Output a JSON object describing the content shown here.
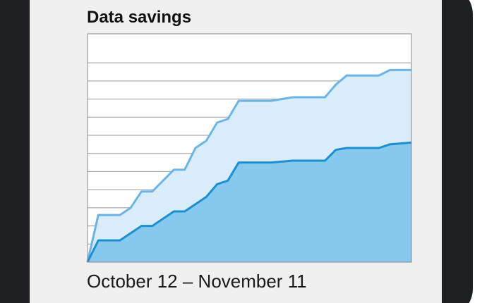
{
  "chart_data": {
    "type": "area",
    "title": "Data savings",
    "subtitle": "October 12 – November 11",
    "x": [
      0,
      1,
      3,
      4,
      5,
      6,
      8,
      9,
      10,
      11,
      12,
      13,
      14,
      17,
      19,
      22,
      23,
      24,
      27,
      28,
      30
    ],
    "xlim": [
      0,
      30
    ],
    "ylim": [
      0,
      12.6
    ],
    "yticks": [
      1,
      2,
      3,
      4,
      5,
      6,
      7,
      8,
      9,
      10,
      11
    ],
    "grid": true,
    "series": [
      {
        "color": "#6cb4e8",
        "fill": "#d8edf9",
        "values": [
          0,
          2.6,
          2.6,
          3.0,
          3.9,
          3.9,
          5.1,
          5.1,
          6.3,
          6.7,
          7.7,
          7.9,
          8.9,
          8.9,
          9.1,
          9.1,
          9.8,
          10.3,
          10.3,
          10.6,
          10.6
        ]
      },
      {
        "color": "#1b8fd0",
        "fill": "#86c8ee",
        "values": [
          0,
          1.2,
          1.2,
          1.6,
          2.0,
          2.0,
          2.8,
          2.8,
          3.2,
          3.6,
          4.3,
          4.5,
          5.5,
          5.5,
          5.6,
          5.6,
          6.2,
          6.3,
          6.3,
          6.5,
          6.6
        ]
      }
    ]
  }
}
